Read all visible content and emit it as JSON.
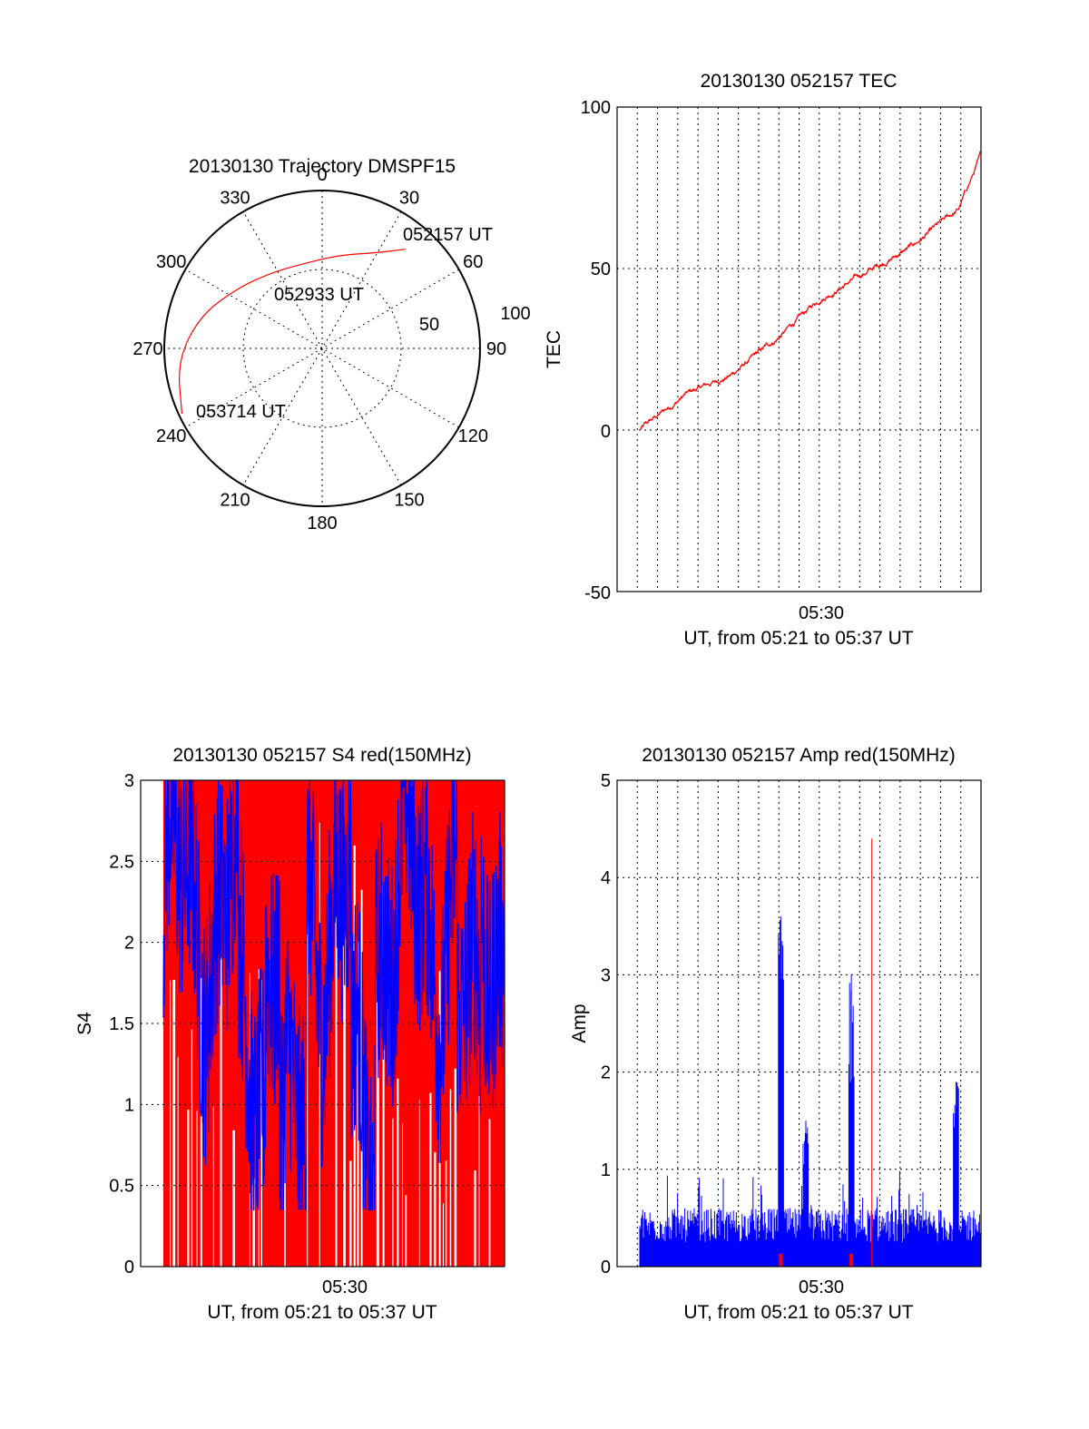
{
  "colors": {
    "red": "#ff0000",
    "blue": "#0000ff",
    "axis": "#000000"
  },
  "chart_data": [
    {
      "type": "polar",
      "title": "20130130 Trajectory DMSPF15",
      "angle_labels": [
        "0",
        "30",
        "60",
        "90",
        "120",
        "150",
        "180",
        "210",
        "240",
        "270",
        "300",
        "330"
      ],
      "radius_labels": [
        "50",
        "100"
      ],
      "start_label": "052157 UT",
      "mid_label": "052933 UT",
      "end_label": "053714 UT",
      "trajectory": [
        [
          40,
          82
        ],
        [
          30,
          70
        ],
        [
          10,
          60
        ],
        [
          -15,
          55
        ],
        [
          -35,
          58
        ],
        [
          -55,
          66
        ],
        [
          -75,
          80
        ],
        [
          -95,
          92
        ],
        [
          -115,
          98
        ]
      ]
    },
    {
      "type": "line",
      "title": "20130130 052157 TEC",
      "ylabel": "TEC",
      "xlabel": "UT, from 05:21 to 05:37 UT",
      "xtick_label": "05:30",
      "ylim": [
        -50,
        100
      ],
      "yticks": [
        "100",
        "50",
        "0",
        "-50"
      ],
      "series_color": "red",
      "x_minutes": [
        0,
        2,
        4,
        6,
        8,
        9,
        10,
        12,
        14,
        15
      ],
      "y_values": [
        0,
        11,
        17,
        28,
        41,
        45,
        49,
        57,
        68,
        85
      ]
    },
    {
      "type": "area",
      "title": "20130130 052157 S4 red(150MHz)",
      "ylabel": "S4",
      "xlabel": "UT, from 05:21 to 05:37 UT",
      "xtick_label": "05:30",
      "ylim": [
        0,
        3
      ],
      "yticks": [
        "3",
        "2.5",
        "2",
        "1.5",
        "1",
        "0.5",
        "0"
      ],
      "series": [
        {
          "color": "red",
          "fill": true
        },
        {
          "color": "blue",
          "fill": false
        }
      ]
    },
    {
      "type": "bar",
      "title": "20130130 052157 Amp red(150MHz)",
      "ylabel": "Amp",
      "xlabel": "UT, from 05:21 to 05:37 UT",
      "xtick_label": "05:30",
      "ylim": [
        0,
        5
      ],
      "yticks": [
        "5",
        "4",
        "3",
        "2",
        "1",
        "0"
      ],
      "peaks": [
        {
          "x_min": 6.2,
          "value": 3.6,
          "color": "blue"
        },
        {
          "x_min": 7.3,
          "value": 1.5,
          "color": "blue"
        },
        {
          "x_min": 9.3,
          "value": 3.0,
          "color": "blue"
        },
        {
          "x_min": 10.2,
          "value": 4.4,
          "color": "red"
        },
        {
          "x_min": 13.9,
          "value": 1.9,
          "color": "blue"
        }
      ]
    }
  ]
}
